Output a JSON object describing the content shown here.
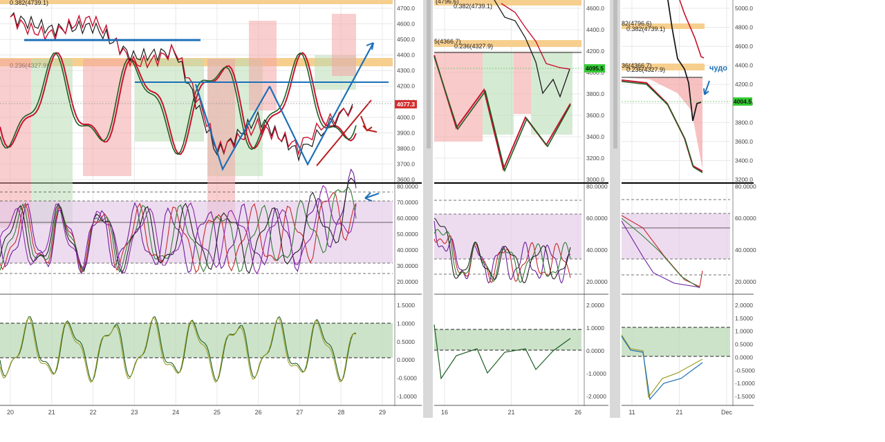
{
  "colors": {
    "bg": "#ffffff",
    "grid": "#e8e8e8",
    "axis_text": "#444444",
    "price_line": "#1a1a1a",
    "red_line": "#c8102e",
    "green_line": "#1b5e20",
    "blue_annot": "#1b6fb8",
    "red_annot": "#b71c1c",
    "cloud_red": "#f4a6a6",
    "cloud_green": "#b9dcb5",
    "fib_band": "#f6cf8e",
    "stoch_zone": "#e3c9e8",
    "osc_zone": "#b7d7b3",
    "price_tag": "#d32f2f",
    "green_tag": "#33cc33",
    "separator": "#d9d9d9",
    "panel_divider": "#000000"
  },
  "panels": [
    {
      "id": "hourly",
      "x_ticks": [
        "20",
        "21",
        "22",
        "23",
        "24",
        "25",
        "26",
        "27",
        "28",
        "29"
      ],
      "price_ticks": [
        "4700.0",
        "4600.0",
        "4500.0",
        "4400.0",
        "4300.0",
        "4200.0",
        "4100.0",
        "4000.0",
        "3900.0",
        "3800.0",
        "3700.0",
        "3600.0"
      ],
      "fib_labels": [
        "0.382(4739.1)",
        "0.236(4327.9)"
      ],
      "last_price": "4077.3",
      "stoch_ticks": [
        "80.0000",
        "70.0000",
        "60.0000",
        "50.0000",
        "40.0000",
        "30.0000",
        "20.0000"
      ],
      "osc_ticks": [
        "1.5000",
        "1.0000",
        "0.5000",
        "0.0000",
        "-0.5000",
        "-1.0000"
      ]
    },
    {
      "id": "four_hour",
      "x_ticks": [
        "16",
        "21",
        "26"
      ],
      "price_ticks": [
        "4600.0",
        "4400.0",
        "4200.0",
        "4000.0",
        "3800.0",
        "3600.0",
        "3400.0",
        "3200.0",
        "3000.0"
      ],
      "fib_labels": [
        "(4796.6)",
        "0.382(4739.1)",
        "5(4366.7)",
        "0.236(4327.9)"
      ],
      "last_price": "4095.5",
      "stoch_ticks": [
        "80.0000",
        "60.0000",
        "40.0000",
        "20.0000"
      ],
      "osc_ticks": [
        "2.0000",
        "1.0000",
        "0.0000",
        "-1.0000",
        "-2.0000"
      ]
    },
    {
      "id": "daily",
      "x_ticks": [
        "11",
        "21",
        "Dec"
      ],
      "price_ticks": [
        "5000.0",
        "4800.0",
        "4600.0",
        "4400.0",
        "4200.0",
        "4000.0",
        "3800.0",
        "3600.0",
        "3400.0",
        "3200.0"
      ],
      "fib_labels": [
        "82(4796.6)",
        "0.382(4739.1)",
        "36(4366.7)",
        "0.236(4327.9)"
      ],
      "last_price": "4004.5",
      "annotation": "чудо",
      "stoch_ticks": [
        "80.0000",
        "60.0000",
        "40.0000",
        "20.0000"
      ],
      "osc_ticks": [
        "2.0000",
        "1.5000",
        "1.0000",
        "0.5000",
        "0.0000",
        "-0.5000",
        "-1.0000",
        "-1.5000"
      ]
    }
  ],
  "chart_data": [
    {
      "type": "line",
      "panel": "hourly price",
      "x": [
        "20",
        "21",
        "22",
        "23",
        "24",
        "25",
        "26",
        "27",
        "28"
      ],
      "series": [
        {
          "values": [
            4640,
            4560,
            4580,
            4380,
            4420,
            3760,
            3990,
            3760,
            4077
          ]
        }
      ],
      "ylim": [
        3580,
        4750
      ],
      "fib_levels": [
        4739.1,
        4327.9
      ],
      "last_value": 4077.3
    },
    {
      "type": "line",
      "panel": "4h price",
      "x": [
        "16",
        "21",
        "26"
      ],
      "series": [
        {
          "values": [
            4780,
            4500,
            3850
          ]
        }
      ],
      "ylim": [
        2950,
        4800
      ],
      "fib_levels": [
        4796.6,
        4739.1,
        4366.7,
        4327.9
      ],
      "last_value": 4095.5
    },
    {
      "type": "line",
      "panel": "daily price",
      "x": [
        "11",
        "21",
        "Dec"
      ],
      "series": [
        {
          "values": [
            5050,
            4700,
            4004.5
          ]
        }
      ],
      "ylim": [
        3150,
        5050
      ],
      "fib_levels": [
        4796.6,
        4739.1,
        4366.7,
        4327.9
      ],
      "last_value": 4004.5
    }
  ]
}
